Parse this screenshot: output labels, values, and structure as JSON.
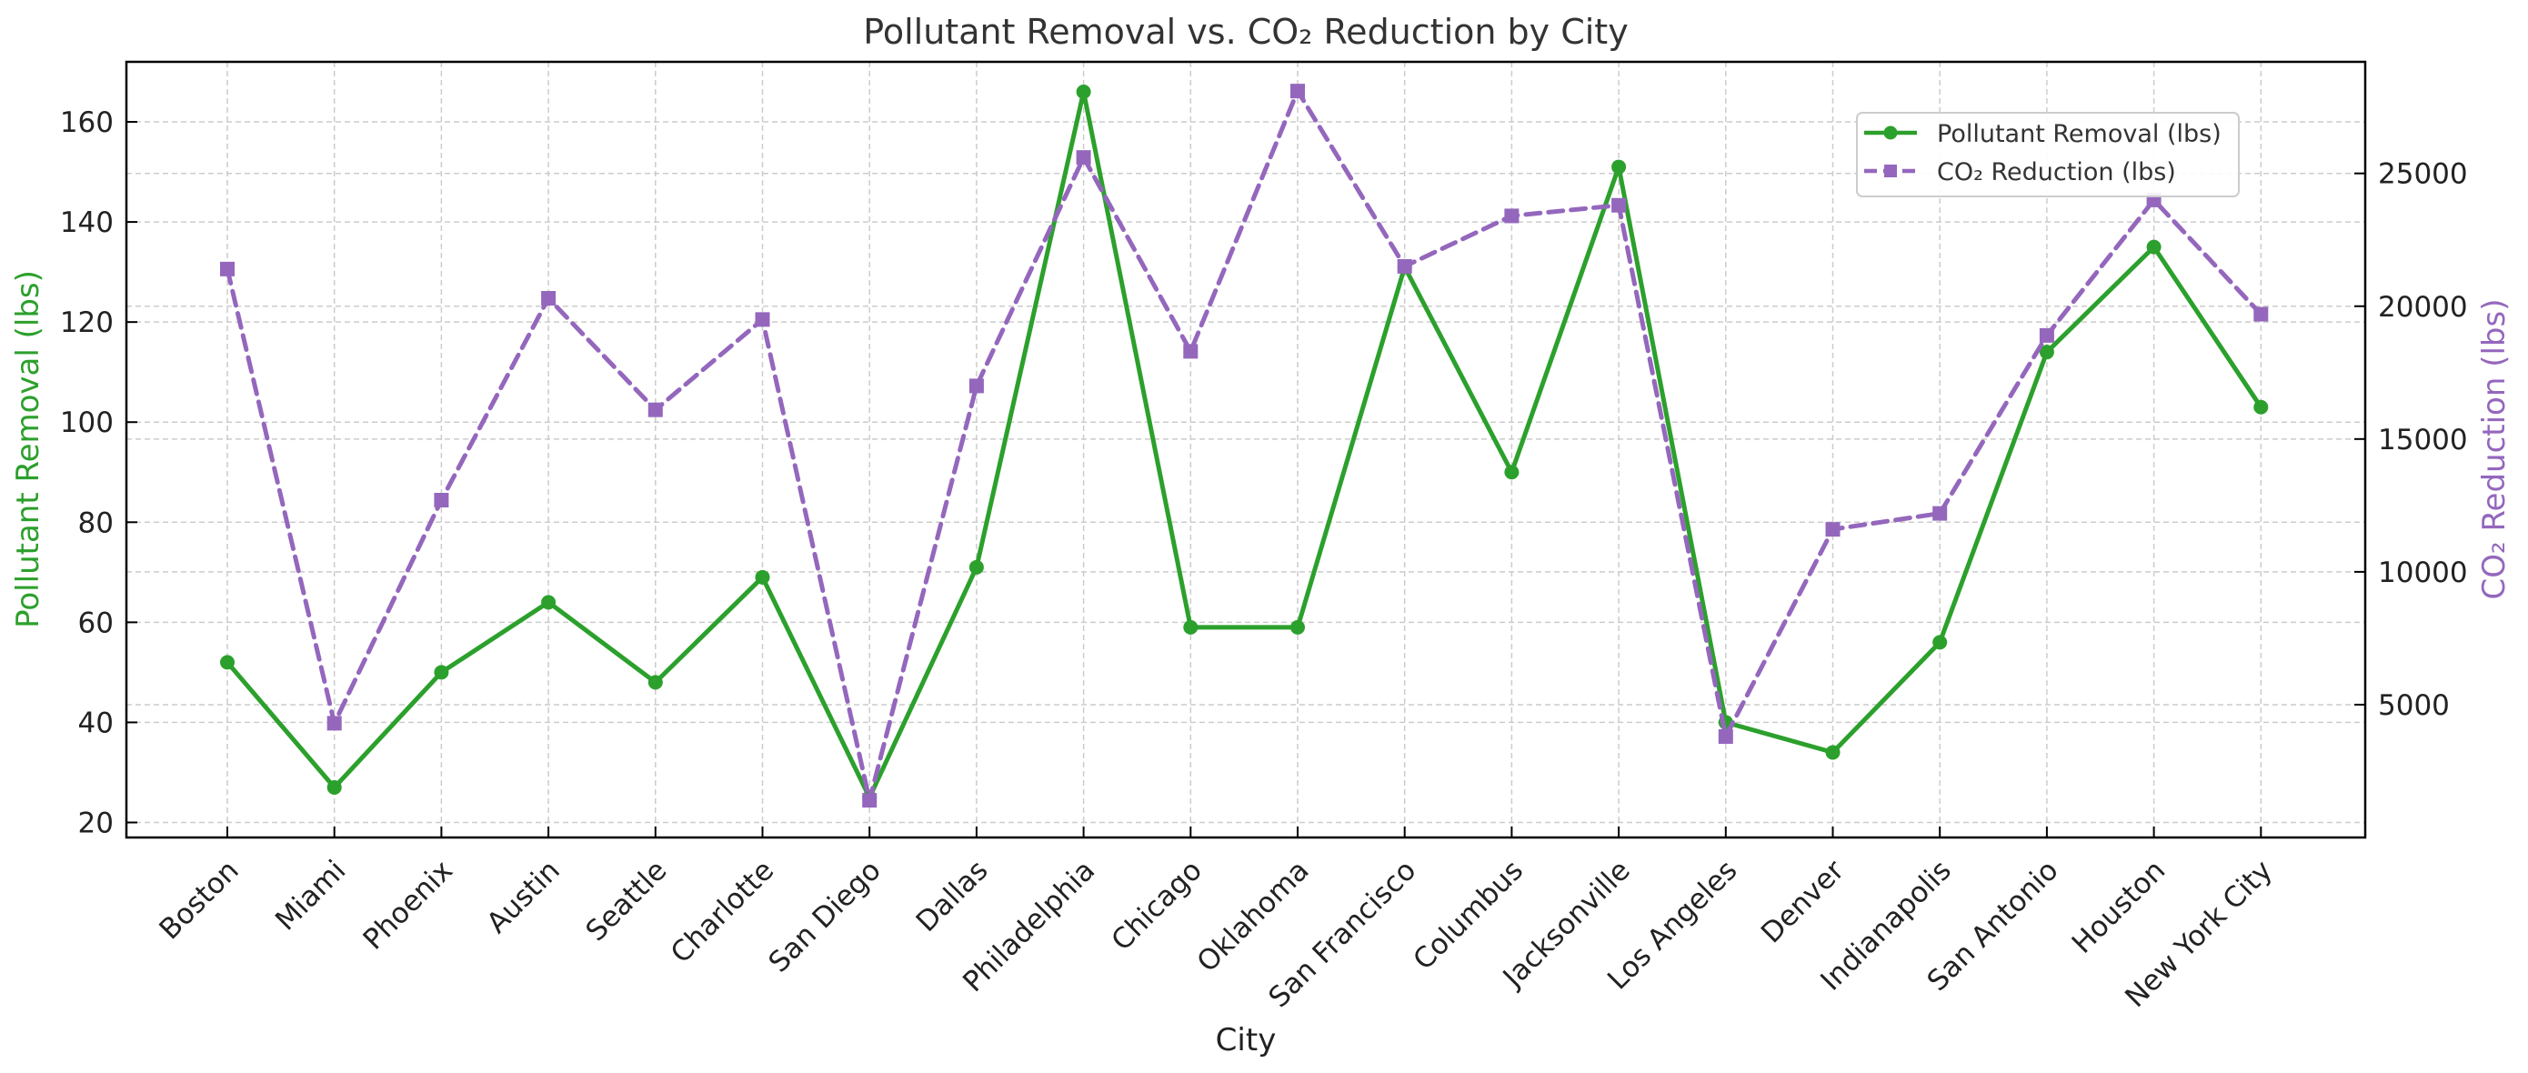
{
  "chart_data": {
    "type": "line",
    "title": "Pollutant Removal vs. CO₂ Reduction by City",
    "xlabel": "City",
    "ylabel_left": "Pollutant Removal (lbs)",
    "ylabel_right": "CO₂ Reduction (lbs)",
    "categories": [
      "Boston",
      "Miami",
      "Phoenix",
      "Austin",
      "Seattle",
      "Charlotte",
      "San Diego",
      "Dallas",
      "Philadelphia",
      "Chicago",
      "Oklahoma",
      "San Francisco",
      "Columbus",
      "Jacksonville",
      "Los Angeles",
      "Denver",
      "Indianapolis",
      "San Antonio",
      "Houston",
      "New York City"
    ],
    "ylim_left": [
      17,
      172
    ],
    "ylim_right": [
      0,
      29200
    ],
    "yticks_left": [
      20,
      40,
      60,
      80,
      100,
      120,
      140,
      160
    ],
    "yticks_right": [
      5000,
      10000,
      15000,
      20000,
      25000
    ],
    "grid": true,
    "legend_position": "top-right",
    "series": [
      {
        "name": "Pollutant Removal (lbs)",
        "axis": "left",
        "color": "#2ca02c",
        "marker": "circle",
        "line_style": "solid",
        "values": [
          52,
          27,
          50,
          64,
          48,
          69,
          25,
          71,
          166,
          59,
          59,
          131,
          90,
          151,
          40,
          34,
          56,
          114,
          135,
          103
        ]
      },
      {
        "name": "CO₂ Reduction (lbs)",
        "axis": "right",
        "color": "#9467bd",
        "marker": "square",
        "line_style": "dashed",
        "values": [
          21400,
          4300,
          12700,
          20300,
          16100,
          19500,
          1400,
          17000,
          25600,
          18300,
          28100,
          21500,
          23400,
          23800,
          3800,
          11600,
          12200,
          18900,
          24000,
          19700
        ]
      }
    ]
  }
}
